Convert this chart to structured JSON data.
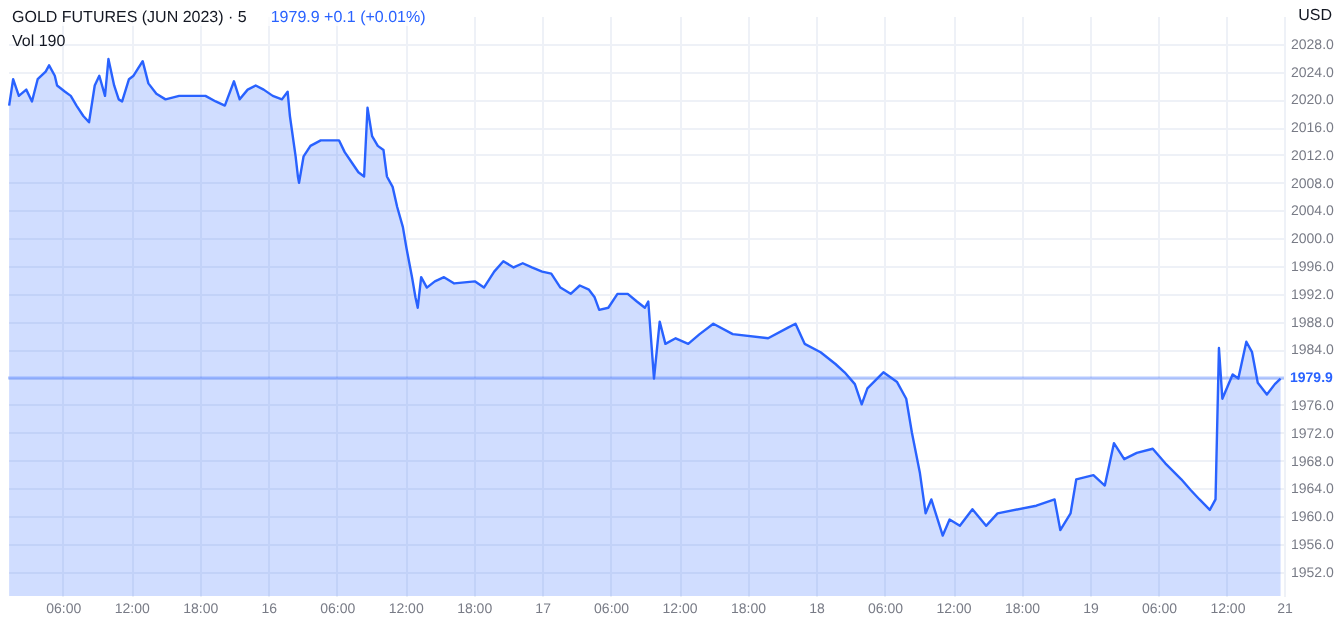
{
  "chart_data": {
    "type": "area",
    "title": "GOLD FUTURES (JUN 2023) · 5",
    "subtitle": "1979.9 +0.1 (+0.01%)",
    "annotations": [
      "Vol 190",
      "USD"
    ],
    "series": [
      {
        "color": "#2962ff",
        "x": [
          "2023-05-15T01:18",
          "2023-05-15T01:39",
          "2023-05-15T02:09",
          "2023-05-15T02:48",
          "2023-05-15T03:18",
          "2023-05-15T03:48",
          "2023-05-15T04:30",
          "2023-05-15T04:48",
          "2023-05-15T05:18",
          "2023-05-15T05:30",
          "2023-05-15T06:12",
          "2023-05-15T06:42",
          "2023-05-15T07:12",
          "2023-05-15T07:48",
          "2023-05-15T08:18",
          "2023-05-15T08:48",
          "2023-05-15T09:12",
          "2023-05-15T09:42",
          "2023-05-15T10:00",
          "2023-05-15T10:30",
          "2023-05-15T10:54",
          "2023-05-15T11:12",
          "2023-05-15T11:48",
          "2023-05-15T12:12",
          "2023-05-15T13:00",
          "2023-05-15T13:30",
          "2023-05-15T14:12",
          "2023-05-15T15:00",
          "2023-05-15T16:12",
          "2023-05-15T18:30",
          "2023-05-15T19:24",
          "2023-05-15T20:12",
          "2023-05-15T21:00",
          "2023-05-15T21:30",
          "2023-05-15T22:12",
          "2023-05-15T22:54",
          "2023-05-15T23:36",
          "2023-05-16T00:24",
          "2023-05-16T01:12",
          "2023-05-16T01:42",
          "2023-05-16T01:54",
          "2023-05-16T02:24",
          "2023-05-16T02:36",
          "2023-05-16T02:42",
          "2023-05-16T03:06",
          "2023-05-16T03:42",
          "2023-05-16T04:36",
          "2023-05-16T05:24",
          "2023-05-16T06:12",
          "2023-05-16T06:42",
          "2023-05-16T07:12",
          "2023-05-16T07:54",
          "2023-05-16T08:24",
          "2023-05-16T08:42",
          "2023-05-16T09:06",
          "2023-05-16T09:36",
          "2023-05-16T10:06",
          "2023-05-16T10:24",
          "2023-05-16T10:54",
          "2023-05-16T11:18",
          "2023-05-16T11:48",
          "2023-05-16T12:06",
          "2023-05-16T12:36",
          "2023-05-16T12:54",
          "2023-05-16T13:06",
          "2023-05-16T13:24",
          "2023-05-16T13:54",
          "2023-05-16T14:36",
          "2023-05-16T15:24",
          "2023-05-16T16:18",
          "2023-05-16T18:06",
          "2023-05-16T18:54",
          "2023-05-16T19:48",
          "2023-05-16T20:36",
          "2023-05-16T21:30",
          "2023-05-16T22:18",
          "2023-05-16T23:06",
          "2023-05-17T00:00",
          "2023-05-17T00:48",
          "2023-05-17T01:36",
          "2023-05-17T02:30",
          "2023-05-17T03:18",
          "2023-05-17T04:06",
          "2023-05-17T04:36",
          "2023-05-17T05:00",
          "2023-05-17T05:48",
          "2023-05-17T06:36",
          "2023-05-17T07:30",
          "2023-05-17T08:18",
          "2023-05-17T09:00",
          "2023-05-17T09:18",
          "2023-05-17T09:48",
          "2023-05-17T10:18",
          "2023-05-17T10:48",
          "2023-05-17T11:42",
          "2023-05-17T12:48",
          "2023-05-17T13:48",
          "2023-05-17T15:00",
          "2023-05-17T16:42",
          "2023-05-17T19:48",
          "2023-05-17T21:30",
          "2023-05-17T22:12",
          "2023-05-17T23:00",
          "2023-05-18T00:24",
          "2023-05-18T01:42",
          "2023-05-18T02:30",
          "2023-05-18T03:24",
          "2023-05-18T04:00",
          "2023-05-18T04:30",
          "2023-05-18T05:54",
          "2023-05-18T07:06",
          "2023-05-18T07:54",
          "2023-05-18T08:24",
          "2023-05-18T09:06",
          "2023-05-18T09:36",
          "2023-05-18T10:06",
          "2023-05-18T11:06",
          "2023-05-18T11:42",
          "2023-05-18T12:36",
          "2023-05-18T13:42",
          "2023-05-18T14:54",
          "2023-05-18T15:54",
          "2023-05-18T19:18",
          "2023-05-18T20:54",
          "2023-05-18T21:24",
          "2023-05-18T22:18",
          "2023-05-18T22:48",
          "2023-05-19T00:18",
          "2023-05-19T01:18",
          "2023-05-19T02:06",
          "2023-05-19T03:00",
          "2023-05-19T04:06",
          "2023-05-19T05:30",
          "2023-05-19T06:36",
          "2023-05-19T08:00",
          "2023-05-19T08:48",
          "2023-05-19T09:36",
          "2023-05-19T10:30",
          "2023-05-19T11:00",
          "2023-05-19T11:18",
          "2023-05-19T11:36",
          "2023-05-19T12:30",
          "2023-05-19T13:00",
          "2023-05-19T13:42",
          "2023-05-19T14:12",
          "2023-05-19T14:42",
          "2023-05-19T15:30",
          "2023-05-19T16:12",
          "2023-05-19T16:42"
        ],
        "values": [
          2019.1,
          2022.9,
          2020.5,
          2021.4,
          2019.7,
          2022.9,
          2024.0,
          2024.9,
          2023.4,
          2022.0,
          2021.1,
          2020.5,
          2019.1,
          2017.6,
          2016.7,
          2022.0,
          2023.4,
          2020.5,
          2025.8,
          2022.0,
          2020.0,
          2019.7,
          2022.9,
          2023.4,
          2025.5,
          2022.3,
          2020.8,
          2020.0,
          2020.5,
          2020.5,
          2019.7,
          2019.1,
          2022.6,
          2020.0,
          2021.4,
          2022.0,
          2021.4,
          2020.5,
          2020.0,
          2021.1,
          2017.6,
          2011.8,
          2008.9,
          2008.0,
          2011.8,
          2013.3,
          2014.1,
          2014.1,
          2014.1,
          2012.4,
          2011.2,
          2009.5,
          2008.9,
          2018.8,
          2014.7,
          2013.3,
          2012.7,
          2008.9,
          2007.4,
          2004.5,
          2001.6,
          1998.7,
          1994.4,
          1991.5,
          1990.0,
          1994.4,
          1992.9,
          1993.8,
          1994.4,
          1993.5,
          1993.8,
          1992.9,
          1995.2,
          1996.7,
          1995.8,
          1996.4,
          1995.8,
          1995.2,
          1994.9,
          1992.9,
          1992.0,
          1993.2,
          1992.6,
          1991.5,
          1989.7,
          1990.0,
          1992.0,
          1992.0,
          1990.9,
          1990.0,
          1990.9,
          1979.8,
          1988.0,
          1984.8,
          1985.6,
          1984.8,
          1986.2,
          1987.7,
          1986.2,
          1985.6,
          1987.1,
          1987.7,
          1984.8,
          1983.6,
          1981.9,
          1980.7,
          1979.0,
          1976.1,
          1978.4,
          1980.7,
          1979.3,
          1976.9,
          1972.0,
          1966.2,
          1960.4,
          1962.4,
          1957.2,
          1959.5,
          1958.6,
          1961.0,
          1958.6,
          1960.4,
          1961.5,
          1962.4,
          1958.0,
          1960.4,
          1965.3,
          1965.9,
          1964.4,
          1970.5,
          1968.2,
          1969.1,
          1969.7,
          1967.6,
          1965.3,
          1963.8,
          1962.4,
          1960.9,
          1962.4,
          1984.2,
          1976.9,
          1980.4,
          1979.8,
          1985.1,
          1983.6,
          1979.2,
          1977.5,
          1979.0,
          1979.8
        ]
      }
    ],
    "xlim": [
      "2023-05-15T01:12",
      "2023-05-19T17:00"
    ],
    "xticks": [
      {
        "value": "2023-05-15T06:00",
        "label": "06:00"
      },
      {
        "value": "2023-05-15T12:00",
        "label": "12:00"
      },
      {
        "value": "2023-05-15T18:00",
        "label": "18:00"
      },
      {
        "value": "2023-05-16",
        "label": "16"
      },
      {
        "value": "2023-05-16T06:00",
        "label": "06:00"
      },
      {
        "value": "2023-05-16T12:00",
        "label": "12:00"
      },
      {
        "value": "2023-05-16T18:00",
        "label": "18:00"
      },
      {
        "value": "2023-05-17",
        "label": "17"
      },
      {
        "value": "2023-05-17T06:00",
        "label": "06:00"
      },
      {
        "value": "2023-05-17T12:00",
        "label": "12:00"
      },
      {
        "value": "2023-05-17T18:00",
        "label": "18:00"
      },
      {
        "value": "2023-05-18",
        "label": "18"
      },
      {
        "value": "2023-05-18T06:00",
        "label": "06:00"
      },
      {
        "value": "2023-05-18T12:00",
        "label": "12:00"
      },
      {
        "value": "2023-05-18T18:00",
        "label": "18:00"
      },
      {
        "value": "2023-05-19",
        "label": "19"
      },
      {
        "value": "2023-05-19T06:00",
        "label": "06:00"
      },
      {
        "value": "2023-05-19T12:00",
        "label": "12:00"
      },
      {
        "value": "2023-05-19T17:00",
        "label": "21"
      }
    ],
    "ylim": [
      1948.5,
      2032
    ],
    "yticks": [
      {
        "value": 1952,
        "label": "1952.0"
      },
      {
        "value": 1956,
        "label": "1956.0"
      },
      {
        "value": 1960,
        "label": "1960.0"
      },
      {
        "value": 1964,
        "label": "1964.0"
      },
      {
        "value": 1968,
        "label": "1968.0"
      },
      {
        "value": 1972,
        "label": "1972.0"
      },
      {
        "value": 1976,
        "label": "1976.0"
      },
      {
        "value": 1980,
        "label": null
      },
      {
        "value": 1984,
        "label": "1984.0"
      },
      {
        "value": 1988,
        "label": "1988.0"
      },
      {
        "value": 1992,
        "label": "1992.0"
      },
      {
        "value": 1996,
        "label": "1996.0"
      },
      {
        "value": 2000,
        "label": "2000.0"
      },
      {
        "value": 2004,
        "label": "2004.0"
      },
      {
        "value": 2008,
        "label": "2008.0"
      },
      {
        "value": 2012,
        "label": "2012.0"
      },
      {
        "value": 2016,
        "label": "2016.0"
      },
      {
        "value": 2020,
        "label": "2020.0"
      },
      {
        "value": 2024,
        "label": "2024.0"
      },
      {
        "value": 2028,
        "label": "2028.0"
      }
    ],
    "ref_lines": [
      {
        "axis": "y",
        "value": 1979.9,
        "label": "1979.9",
        "color": "#2962ff"
      }
    ],
    "grid": true
  }
}
